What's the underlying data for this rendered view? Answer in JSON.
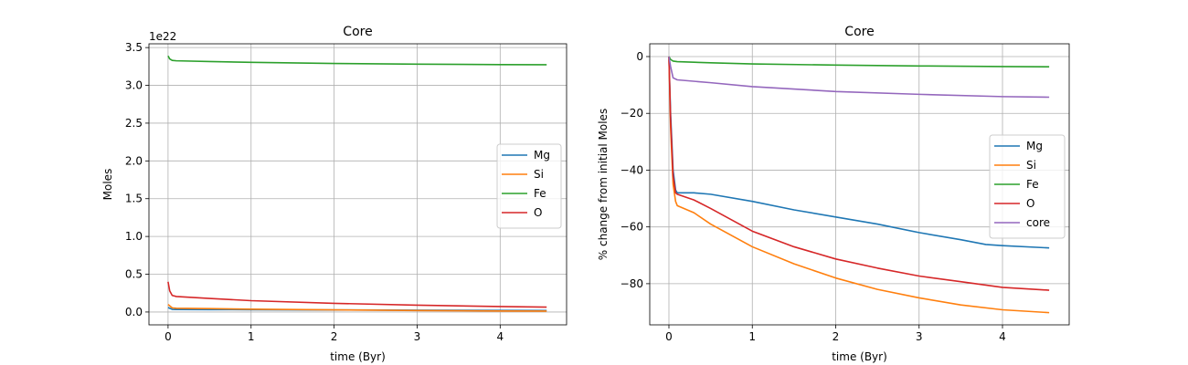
{
  "chart_data": [
    {
      "type": "line",
      "title": "Core",
      "xlabel": "time (Byr)",
      "ylabel": "Moles",
      "y_offset_label": "1e22",
      "xlim": [
        -0.23,
        4.8
      ],
      "ylim": [
        -0.17,
        3.55
      ],
      "xticks": [
        0,
        1,
        2,
        3,
        4
      ],
      "xtick_labels": [
        "0",
        "1",
        "2",
        "3",
        "4"
      ],
      "yticks": [
        0.0,
        0.5,
        1.0,
        1.5,
        2.0,
        2.5,
        3.0,
        3.5
      ],
      "ytick_labels": [
        "0.0",
        "0.5",
        "1.0",
        "1.5",
        "2.0",
        "2.5",
        "3.0",
        "3.5"
      ],
      "grid": true,
      "legend_position": "center-right",
      "series": [
        {
          "name": "Mg",
          "color": "#1f77b4",
          "x": [
            0,
            0.05,
            0.1,
            0.5,
            1,
            2,
            3,
            4,
            4.56
          ],
          "y": [
            0.06,
            0.035,
            0.033,
            0.032,
            0.03,
            0.027,
            0.024,
            0.021,
            0.02
          ]
        },
        {
          "name": "Si",
          "color": "#ff7f0e",
          "x": [
            0,
            0.05,
            0.1,
            0.5,
            1,
            2,
            3,
            4,
            4.56
          ],
          "y": [
            0.1,
            0.055,
            0.05,
            0.045,
            0.038,
            0.028,
            0.02,
            0.014,
            0.012
          ]
        },
        {
          "name": "Fe",
          "color": "#2ca02c",
          "x": [
            0,
            0.02,
            0.05,
            0.1,
            0.5,
            1,
            2,
            3,
            4,
            4.56
          ],
          "y": [
            3.39,
            3.35,
            3.33,
            3.325,
            3.315,
            3.305,
            3.29,
            3.28,
            3.275,
            3.273
          ]
        },
        {
          "name": "O",
          "color": "#d62728",
          "x": [
            0,
            0.02,
            0.05,
            0.1,
            0.5,
            1,
            2,
            3,
            4,
            4.56
          ],
          "y": [
            0.4,
            0.28,
            0.22,
            0.205,
            0.18,
            0.15,
            0.115,
            0.09,
            0.072,
            0.065
          ]
        }
      ]
    },
    {
      "type": "line",
      "title": "Core",
      "xlabel": "time (Byr)",
      "ylabel": "% change from initial Moles",
      "xlim": [
        -0.23,
        4.8
      ],
      "ylim": [
        -94.5,
        4.5
      ],
      "xticks": [
        0,
        1,
        2,
        3,
        4
      ],
      "xtick_labels": [
        "0",
        "1",
        "2",
        "3",
        "4"
      ],
      "yticks": [
        0,
        -20,
        -40,
        -60,
        -80
      ],
      "ytick_labels": [
        "0",
        "−20",
        "−40",
        "−60",
        "−80"
      ],
      "grid": true,
      "legend_position": "center-right",
      "series": [
        {
          "name": "Mg",
          "color": "#1f77b4",
          "x": [
            0,
            0.02,
            0.05,
            0.08,
            0.1,
            0.3,
            0.5,
            1,
            1.5,
            2,
            2.5,
            3,
            3.5,
            3.8,
            4,
            4.56
          ],
          "y": [
            0,
            -20,
            -40,
            -47,
            -48,
            -48,
            -48.5,
            -51,
            -54,
            -56.5,
            -59,
            -62,
            -64.5,
            -66.2,
            -66.6,
            -67.4
          ]
        },
        {
          "name": "Si",
          "color": "#ff7f0e",
          "x": [
            0,
            0.02,
            0.05,
            0.08,
            0.1,
            0.3,
            0.5,
            1,
            1.5,
            2,
            2.5,
            3,
            3.5,
            4,
            4.56
          ],
          "y": [
            0,
            -25,
            -45,
            -51,
            -52.5,
            -55,
            -59,
            -67,
            -73,
            -78,
            -82,
            -85,
            -87.5,
            -89.2,
            -90.2
          ]
        },
        {
          "name": "Fe",
          "color": "#2ca02c",
          "x": [
            0,
            0.02,
            0.05,
            0.1,
            0.5,
            1,
            2,
            3,
            4,
            4.56
          ],
          "y": [
            0,
            -1,
            -1.6,
            -1.8,
            -2.2,
            -2.6,
            -3.0,
            -3.3,
            -3.5,
            -3.6
          ]
        },
        {
          "name": "O",
          "color": "#d62728",
          "x": [
            0,
            0.02,
            0.05,
            0.08,
            0.1,
            0.3,
            0.5,
            1,
            1.5,
            2,
            2.5,
            3,
            3.5,
            4,
            4.56
          ],
          "y": [
            0,
            -22,
            -42,
            -48,
            -48.5,
            -50.5,
            -53.5,
            -61.5,
            -67,
            -71.3,
            -74.5,
            -77.3,
            -79.3,
            -81.3,
            -82.3
          ]
        },
        {
          "name": "core",
          "color": "#9467bd",
          "x": [
            0,
            0.02,
            0.05,
            0.1,
            0.5,
            1,
            2,
            3,
            4,
            4.56
          ],
          "y": [
            0,
            -3.5,
            -7.5,
            -8.2,
            -9.2,
            -10.6,
            -12.3,
            -13.3,
            -14.1,
            -14.3
          ]
        }
      ]
    }
  ]
}
